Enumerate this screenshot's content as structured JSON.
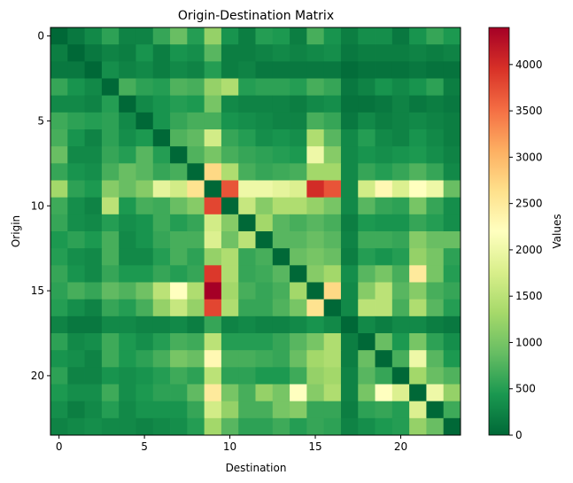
{
  "chart_data": {
    "type": "heatmap",
    "title": "Origin-Destination Matrix",
    "xlabel": "Destination",
    "ylabel": "Origin",
    "colorbar_label": "Values",
    "colormap": "RdYlGn_r",
    "vmin": 0,
    "vmax": 4400,
    "x_ticks": [
      0,
      5,
      10,
      15,
      20
    ],
    "y_ticks": [
      0,
      5,
      10,
      15,
      20
    ],
    "colorbar_ticks": [
      0,
      500,
      1000,
      1500,
      2000,
      2500,
      3000,
      3500,
      4000
    ],
    "rows": 24,
    "cols": 24,
    "values": [
      [
        0,
        150,
        300,
        550,
        250,
        250,
        600,
        900,
        500,
        1200,
        400,
        200,
        500,
        450,
        200,
        700,
        400,
        200,
        350,
        350,
        150,
        400,
        600,
        450
      ],
      [
        200,
        0,
        150,
        250,
        200,
        400,
        200,
        400,
        350,
        800,
        200,
        200,
        250,
        300,
        250,
        300,
        350,
        150,
        200,
        200,
        200,
        250,
        200,
        250
      ],
      [
        150,
        150,
        0,
        350,
        250,
        300,
        200,
        300,
        250,
        500,
        200,
        250,
        150,
        150,
        150,
        150,
        150,
        50,
        100,
        100,
        100,
        150,
        100,
        100
      ],
      [
        600,
        400,
        300,
        0,
        700,
        550,
        500,
        750,
        700,
        1200,
        1400,
        500,
        550,
        550,
        500,
        700,
        600,
        150,
        250,
        400,
        300,
        400,
        550,
        200
      ],
      [
        300,
        300,
        250,
        500,
        0,
        300,
        400,
        500,
        450,
        1000,
        300,
        250,
        250,
        250,
        200,
        300,
        350,
        100,
        100,
        150,
        250,
        150,
        200,
        150
      ],
      [
        650,
        550,
        500,
        550,
        300,
        0,
        400,
        600,
        700,
        700,
        400,
        350,
        300,
        250,
        250,
        700,
        600,
        150,
        300,
        200,
        250,
        300,
        250,
        200
      ],
      [
        700,
        400,
        250,
        550,
        350,
        450,
        0,
        750,
        850,
        1700,
        600,
        500,
        350,
        400,
        350,
        1400,
        800,
        300,
        500,
        300,
        250,
        400,
        300,
        200
      ],
      [
        900,
        300,
        300,
        600,
        500,
        800,
        500,
        0,
        750,
        1000,
        700,
        600,
        550,
        500,
        450,
        2000,
        1100,
        300,
        400,
        350,
        400,
        450,
        350,
        250
      ],
      [
        600,
        400,
        350,
        700,
        900,
        800,
        600,
        700,
        0,
        2700,
        1400,
        700,
        600,
        650,
        700,
        1300,
        1300,
        300,
        600,
        500,
        600,
        750,
        600,
        300
      ],
      [
        1300,
        550,
        450,
        1100,
        900,
        1100,
        1900,
        1700,
        2600,
        0,
        3700,
        2000,
        2000,
        1900,
        1800,
        4000,
        3700,
        300,
        1700,
        2300,
        1800,
        2200,
        2000,
        900
      ],
      [
        650,
        350,
        250,
        1500,
        450,
        700,
        650,
        900,
        1100,
        3800,
        0,
        1600,
        1100,
        1400,
        1400,
        1200,
        1000,
        300,
        800,
        600,
        550,
        1000,
        600,
        350
      ],
      [
        600,
        350,
        300,
        500,
        350,
        400,
        650,
        500,
        600,
        1700,
        1100,
        0,
        1300,
        800,
        700,
        800,
        700,
        200,
        450,
        400,
        400,
        600,
        500,
        350
      ],
      [
        450,
        550,
        450,
        700,
        300,
        400,
        600,
        700,
        700,
        1800,
        950,
        1500,
        0,
        800,
        800,
        900,
        800,
        250,
        650,
        650,
        600,
        1100,
        900,
        900
      ],
      [
        500,
        350,
        300,
        700,
        300,
        300,
        500,
        700,
        550,
        1200,
        1400,
        600,
        700,
        0,
        900,
        1000,
        900,
        200,
        500,
        400,
        500,
        1200,
        1000,
        550
      ],
      [
        600,
        400,
        300,
        600,
        450,
        450,
        600,
        500,
        600,
        3900,
        1400,
        600,
        650,
        800,
        0,
        1100,
        1300,
        350,
        800,
        1000,
        700,
        2500,
        1000,
        500
      ],
      [
        550,
        700,
        600,
        850,
        750,
        950,
        1500,
        2200,
        1400,
        4400,
        1300,
        700,
        600,
        700,
        1300,
        0,
        2700,
        300,
        1100,
        1500,
        800,
        1100,
        700,
        600
      ],
      [
        500,
        350,
        250,
        600,
        500,
        700,
        1200,
        1600,
        1200,
        3800,
        1400,
        600,
        600,
        750,
        1000,
        2600,
        0,
        300,
        1500,
        1500,
        700,
        1400,
        800,
        500
      ],
      [
        250,
        150,
        150,
        300,
        300,
        250,
        250,
        300,
        200,
        600,
        250,
        300,
        250,
        250,
        300,
        400,
        300,
        0,
        300,
        200,
        300,
        300,
        200,
        150
      ],
      [
        550,
        300,
        350,
        650,
        450,
        350,
        500,
        700,
        650,
        1500,
        500,
        500,
        500,
        600,
        800,
        1000,
        1400,
        200,
        0,
        900,
        450,
        1000,
        550,
        350
      ],
      [
        400,
        350,
        250,
        650,
        450,
        550,
        700,
        1000,
        900,
        2300,
        700,
        700,
        650,
        600,
        900,
        1300,
        1400,
        200,
        900,
        0,
        700,
        2000,
        800,
        450
      ],
      [
        550,
        250,
        250,
        400,
        350,
        400,
        500,
        650,
        550,
        1500,
        550,
        550,
        450,
        450,
        650,
        1200,
        1300,
        250,
        800,
        600,
        0,
        1300,
        900,
        750
      ],
      [
        450,
        350,
        350,
        650,
        350,
        450,
        550,
        550,
        850,
        2500,
        1000,
        700,
        1200,
        1000,
        2200,
        1100,
        1400,
        250,
        1000,
        2200,
        1800,
        0,
        2000,
        1200
      ],
      [
        350,
        200,
        300,
        500,
        300,
        400,
        400,
        400,
        600,
        1700,
        1200,
        700,
        700,
        1000,
        1100,
        600,
        600,
        200,
        550,
        600,
        500,
        1800,
        0,
        650
      ],
      [
        250,
        300,
        350,
        300,
        300,
        250,
        300,
        350,
        500,
        1300,
        800,
        550,
        550,
        650,
        500,
        600,
        550,
        250,
        350,
        450,
        500,
        1200,
        900,
        0
      ]
    ]
  }
}
